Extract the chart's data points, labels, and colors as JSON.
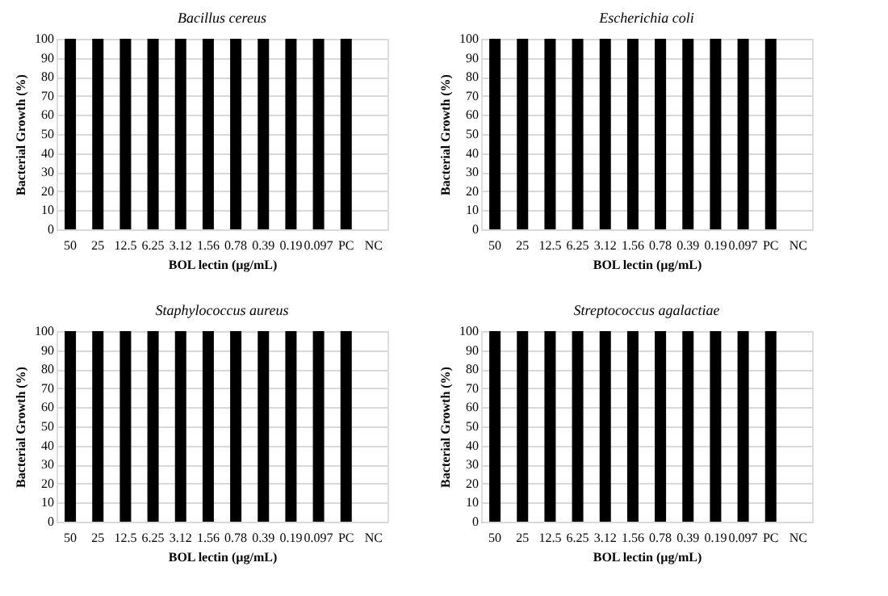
{
  "chart_data": [
    {
      "type": "bar",
      "title": "Bacillus cereus",
      "xlabel": "BOL lectin (µg/mL)",
      "ylabel": "Bacterial Growth (%)",
      "categories": [
        "50",
        "25",
        "12.5",
        "6.25",
        "3.12",
        "1.56",
        "0.78",
        "0.39",
        "0.19",
        "0.097",
        "PC",
        "NC"
      ],
      "values": [
        100,
        100,
        100,
        100,
        100,
        100,
        100,
        100,
        100,
        100,
        100,
        0
      ],
      "color": "#000000",
      "ylim": [
        0,
        100
      ],
      "yticks": [
        0,
        10,
        20,
        30,
        40,
        50,
        60,
        70,
        80,
        90,
        100
      ],
      "grid": "y"
    },
    {
      "type": "bar",
      "title": "Escherichia coli",
      "xlabel": "BOL lectin (µg/mL)",
      "ylabel": "Bacterial Growth (%)",
      "categories": [
        "50",
        "25",
        "12.5",
        "6.25",
        "3.12",
        "1.56",
        "0.78",
        "0.39",
        "0.19",
        "0.097",
        "PC",
        "NC"
      ],
      "values": [
        100,
        100,
        100,
        100,
        100,
        100,
        100,
        100,
        100,
        100,
        100,
        0
      ],
      "color": "#000000",
      "ylim": [
        0,
        100
      ],
      "yticks": [
        0,
        10,
        20,
        30,
        40,
        50,
        60,
        70,
        80,
        90,
        100
      ],
      "grid": "y"
    },
    {
      "type": "bar",
      "title": "Staphylococcus aureus",
      "xlabel": "BOL lectin (µg/mL)",
      "ylabel": "Bacterial Growth (%)",
      "categories": [
        "50",
        "25",
        "12.5",
        "6.25",
        "3.12",
        "1.56",
        "0.78",
        "0.39",
        "0.19",
        "0.097",
        "PC",
        "NC"
      ],
      "values": [
        100,
        100,
        100,
        100,
        100,
        100,
        100,
        100,
        100,
        100,
        100,
        0
      ],
      "color": "#000000",
      "ylim": [
        0,
        100
      ],
      "yticks": [
        0,
        10,
        20,
        30,
        40,
        50,
        60,
        70,
        80,
        90,
        100
      ],
      "grid": "y"
    },
    {
      "type": "bar",
      "title": "Streptococcus agalactiae",
      "xlabel": "BOL lectin (µg/mL)",
      "ylabel": "Bacterial Growth (%)",
      "categories": [
        "50",
        "25",
        "12.5",
        "6.25",
        "3.12",
        "1.56",
        "0.78",
        "0.39",
        "0.19",
        "0.097",
        "PC",
        "NC"
      ],
      "values": [
        100,
        100,
        100,
        100,
        100,
        100,
        100,
        100,
        100,
        100,
        100,
        0
      ],
      "color": "#000000",
      "ylim": [
        0,
        100
      ],
      "yticks": [
        0,
        10,
        20,
        30,
        40,
        50,
        60,
        70,
        80,
        90,
        100
      ],
      "grid": "y"
    }
  ]
}
